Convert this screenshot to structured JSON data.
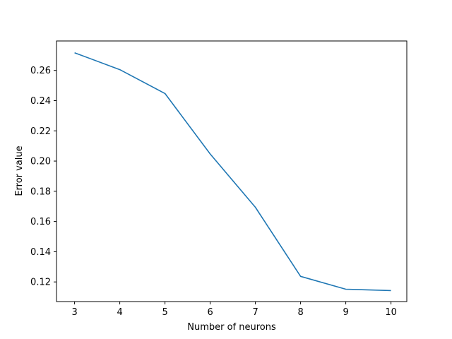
{
  "chart_data": {
    "type": "line",
    "title": "",
    "xlabel": "Number of neurons",
    "ylabel": "Error value",
    "xlim": [
      2.6,
      10.35
    ],
    "ylim": [
      0.107,
      0.2795
    ],
    "x_ticks": [
      3,
      4,
      5,
      6,
      7,
      8,
      9,
      10
    ],
    "y_ticks": [
      0.12,
      0.14,
      0.16,
      0.18,
      0.2,
      0.22,
      0.24,
      0.26
    ],
    "grid": false,
    "legend": "none",
    "series": [
      {
        "color": "#1f77b4",
        "x": [
          3,
          4,
          5,
          6,
          7,
          8,
          9,
          10
        ],
        "y": [
          0.2717,
          0.2605,
          0.2447,
          0.2047,
          0.1694,
          0.1237,
          0.1152,
          0.1143
        ]
      }
    ]
  }
}
